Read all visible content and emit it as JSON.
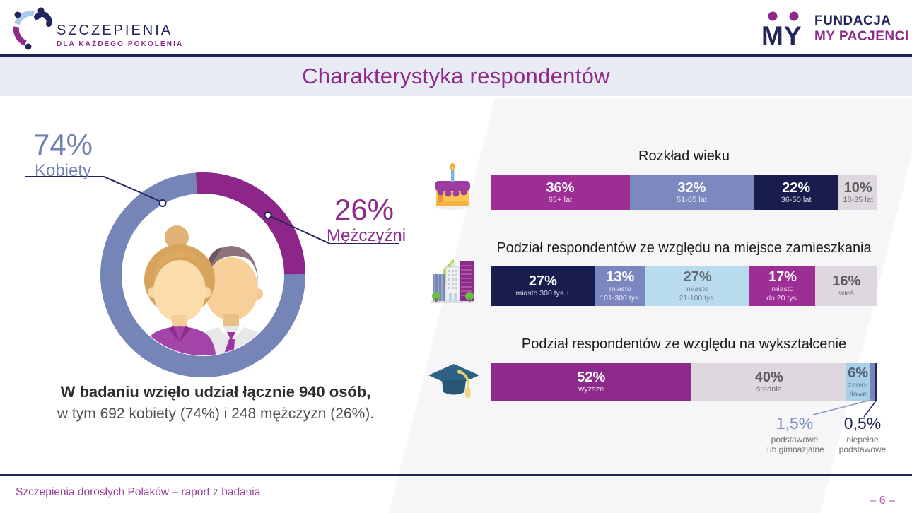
{
  "header": {
    "logo_left": {
      "line1": "SZCZEPIENIA",
      "line2": "DLA KAŻDEGO POKOLENIA"
    },
    "logo_right": {
      "monogram": "MY",
      "line1": "FUNDACJA",
      "line2": "MY PACJENCI"
    },
    "title": "Charakterystyka respondentów"
  },
  "summary": {
    "line1": "W badaniu wzięło udział łącznie 940 osób,",
    "line2": "w tym 692 kobiety (74%) i 248 mężczyzn (26%)."
  },
  "footer": {
    "left": "Szczepienia dorosłych Polaków – raport z badania",
    "page": "– 6 –"
  },
  "colors": {
    "navy": "#23265c",
    "purple": "#8e2a8b",
    "magenta": "#9c2e96",
    "blue_gray": "#7585b8",
    "light_blue": "#b9dbee",
    "light_gray": "#ddd7de",
    "band_bg": "#e8eaf4"
  },
  "chart_data": [
    {
      "type": "pie",
      "title": "Struktura płci respondentów",
      "categories": [
        "Kobiety",
        "Mężczyźni"
      ],
      "values": [
        74,
        26
      ],
      "colors": [
        "#7585b8",
        "#8e2588"
      ],
      "callouts": [
        {
          "pct": "74%",
          "label": "Kobiety"
        },
        {
          "pct": "26%",
          "label": "Mężczyźni"
        }
      ],
      "totals": {
        "osoby": 940,
        "kobiety": 692,
        "mezczyzni": 248
      }
    },
    {
      "type": "bar",
      "stacked": true,
      "title": "Rozkład wieku",
      "categories": [
        "65+ lat",
        "51-65 lat",
        "36-50 lat",
        "18-35 lat"
      ],
      "values": [
        36,
        32,
        22,
        10
      ],
      "unit": "%",
      "colors": [
        "#9c2e96",
        "#7b89c0",
        "#191d4e",
        "#ddd7de"
      ],
      "text_colors": [
        "#ffffff",
        "#ffffff",
        "#ffffff",
        "#5a5a5a"
      ],
      "pct_labels": [
        "36%",
        "32%",
        "22%",
        "10%"
      ],
      "seg_label_lines": [
        [
          "65+ lat"
        ],
        [
          "51-65 lat"
        ],
        [
          "36-50 lat"
        ],
        [
          "18-35 lat"
        ]
      ]
    },
    {
      "type": "bar",
      "stacked": true,
      "title": "Podział respondentów ze względu na miejsce zamieszkania",
      "categories": [
        "miasto 300 tys.+",
        "miasto 101-300 tys.",
        "miasto 21-100 tys.",
        "miasto do 20 tys.",
        "wieś"
      ],
      "values": [
        27,
        13,
        27,
        17,
        16
      ],
      "unit": "%",
      "colors": [
        "#191d4e",
        "#7b85c0",
        "#b9dbee",
        "#9c2e96",
        "#ddd7de"
      ],
      "text_colors": [
        "#ffffff",
        "#ffffff",
        "#5f6b74",
        "#ffffff",
        "#5a5a5a"
      ],
      "pct_labels": [
        "27%",
        "13%",
        "27%",
        "17%",
        "16%"
      ],
      "seg_label_lines": [
        [
          "miasto 300 tys.+"
        ],
        [
          "miasto",
          "101-300 tys."
        ],
        [
          "miasto",
          "21-100 tys."
        ],
        [
          "miasto",
          "do 20 tys."
        ],
        [
          "wieś"
        ]
      ]
    },
    {
      "type": "bar",
      "stacked": true,
      "title": "Podział respondentów ze względu na wykształcenie",
      "categories": [
        "wyższe",
        "średnie",
        "zawodowe",
        "podstawowe lub gimnazjalne",
        "niepełne podstawowe"
      ],
      "values": [
        52,
        40,
        6,
        1.5,
        0.5
      ],
      "unit": "%",
      "colors": [
        "#8e2a8b",
        "#ddd7de",
        "#a9cfe9",
        "#7585b8",
        "#23265c"
      ],
      "text_colors": [
        "#ffffff",
        "#5a5a5a",
        "#51606c",
        "#7d8cc0",
        "#23265c"
      ],
      "pct_labels": [
        "52%",
        "40%",
        "6%",
        "1,5%",
        "0,5%"
      ],
      "seg_label_lines": [
        [
          "wyższe"
        ],
        [
          "średnie"
        ],
        [
          "zawo-",
          "dowe"
        ],
        [],
        []
      ],
      "callouts": [
        {
          "pct": "1,5%",
          "lines": [
            "podstawowe",
            "lub gimnazjalne"
          ]
        },
        {
          "pct": "0,5%",
          "lines": [
            "niepełne",
            "podstawowe"
          ]
        }
      ]
    }
  ]
}
